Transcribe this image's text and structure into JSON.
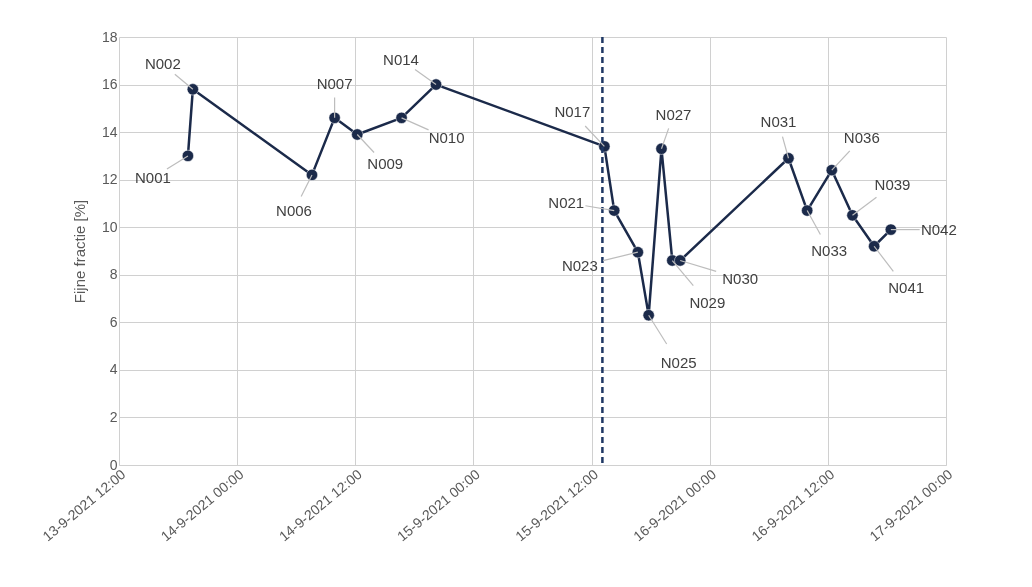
{
  "chart_data": {
    "type": "line",
    "ylabel": "Fijne fractie [%]",
    "x": [
      "2021-09-13T19:00",
      "2021-09-13T19:30",
      "2021-09-14T07:36",
      "2021-09-14T09:54",
      "2021-09-14T12:12",
      "2021-09-14T16:42",
      "2021-09-14T20:12",
      "2021-09-15T13:18",
      "2021-09-15T14:18",
      "2021-09-15T16:42",
      "2021-09-15T17:48",
      "2021-09-15T19:06",
      "2021-09-15T20:12",
      "2021-09-15T21:00",
      "2021-09-16T08:00",
      "2021-09-16T09:54",
      "2021-09-16T12:24",
      "2021-09-16T14:30",
      "2021-09-16T16:42",
      "2021-09-16T18:24"
    ],
    "series": [
      {
        "color": "#1b2a4a",
        "values": [
          13,
          15.8,
          12.2,
          14.6,
          13.9,
          14.6,
          16,
          13.4,
          10.7,
          8.95,
          6.3,
          13.3,
          8.6,
          8.6,
          12.9,
          10.7,
          12.4,
          10.5,
          9.2,
          9.9
        ]
      }
    ],
    "marker": "circle",
    "grid": true,
    "ylim": [
      0,
      18
    ],
    "yticks": [
      0,
      2,
      4,
      6,
      8,
      10,
      12,
      14,
      16,
      18
    ],
    "xlim": [
      "2021-09-13T12:00",
      "2021-09-17T00:00"
    ],
    "xticks": [
      {
        "value": "2021-09-13T12:00",
        "label": "13-9-2021 12:00"
      },
      {
        "value": "2021-09-14T00:00",
        "label": "14-9-2021 00:00"
      },
      {
        "value": "2021-09-14T12:00",
        "label": "14-9-2021 12:00"
      },
      {
        "value": "2021-09-15T00:00",
        "label": "15-9-2021 00:00"
      },
      {
        "value": "2021-09-15T12:00",
        "label": "15-9-2021 12:00"
      },
      {
        "value": "2021-09-16T00:00",
        "label": "16-9-2021 00:00"
      },
      {
        "value": "2021-09-16T12:00",
        "label": "16-9-2021 12:00"
      },
      {
        "value": "2021-09-17T00:00",
        "label": "17-9-2021 00:00"
      }
    ],
    "ref_lines": [
      {
        "axis": "x",
        "value": "2021-09-15T13:06",
        "color": "#1f3864",
        "line_style": "dashed"
      }
    ],
    "annotations": [
      {
        "text": "N001",
        "x": "2021-09-13T19:00",
        "y": 13
      },
      {
        "text": "N002",
        "x": "2021-09-13T19:30",
        "y": 15.8
      },
      {
        "text": "N006",
        "x": "2021-09-14T07:36",
        "y": 12.2
      },
      {
        "text": "N007",
        "x": "2021-09-14T09:54",
        "y": 14.6
      },
      {
        "text": "N009",
        "x": "2021-09-14T12:12",
        "y": 13.9
      },
      {
        "text": "N010",
        "x": "2021-09-14T16:42",
        "y": 14.6
      },
      {
        "text": "N014",
        "x": "2021-09-14T20:12",
        "y": 16
      },
      {
        "text": "N017",
        "x": "2021-09-15T13:18",
        "y": 13.4
      },
      {
        "text": "N021",
        "x": "2021-09-15T14:18",
        "y": 10.7
      },
      {
        "text": "N023",
        "x": "2021-09-15T16:42",
        "y": 8.95
      },
      {
        "text": "N025",
        "x": "2021-09-15T17:48",
        "y": 6.3
      },
      {
        "text": "N027",
        "x": "2021-09-15T19:06",
        "y": 13.3
      },
      {
        "text": "N029",
        "x": "2021-09-15T20:12",
        "y": 8.6
      },
      {
        "text": "N030",
        "x": "2021-09-15T21:00",
        "y": 8.6
      },
      {
        "text": "N031",
        "x": "2021-09-16T08:00",
        "y": 12.9
      },
      {
        "text": "N033",
        "x": "2021-09-16T09:54",
        "y": 10.7
      },
      {
        "text": "N036",
        "x": "2021-09-16T12:24",
        "y": 12.4
      },
      {
        "text": "N039",
        "x": "2021-09-16T14:30",
        "y": 10.5
      },
      {
        "text": "N041",
        "x": "2021-09-16T16:42",
        "y": 9.2
      },
      {
        "text": "N042",
        "x": "2021-09-16T18:24",
        "y": 9.9
      }
    ]
  }
}
